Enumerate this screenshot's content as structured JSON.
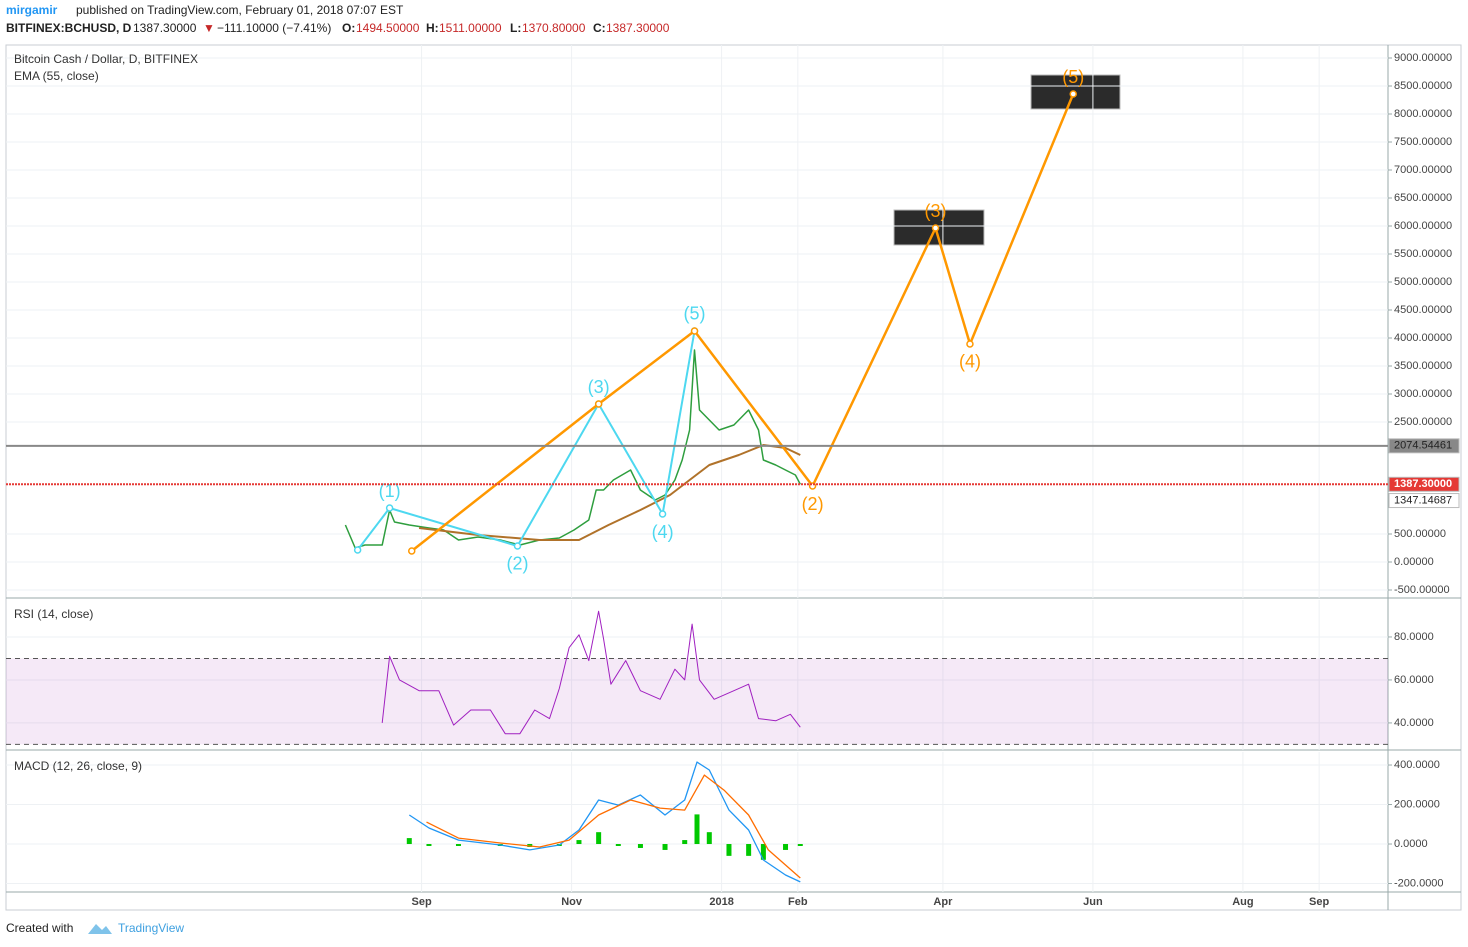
{
  "header": {
    "user": "mirgamir",
    "published": "published on TradingView.com, February 01, 2018 07:07 EST",
    "symbol": "BITFINEX:BCHUSD, D",
    "last": "1387.30000",
    "arrow": "▼",
    "change": "−111.10000 (−7.41%)",
    "o_label": "O:",
    "o": "1494.50000",
    "h_label": "H:",
    "h": "1511.00000",
    "l_label": "L:",
    "l": "1370.80000",
    "c_label": "C:",
    "c": "1387.30000"
  },
  "footer": {
    "created": "Created with",
    "brand": "TradingView"
  },
  "chart_data": [
    {
      "type": "line",
      "title": "Bitcoin Cash / Dollar, D, BITFINEX",
      "subtitle": "EMA (55, close)",
      "xlim": [
        -138,
        424
      ],
      "ylim": [
        -643,
        9232
      ],
      "grid": true,
      "yticks": [
        {
          "value": 9000,
          "label": "9000.00000"
        },
        {
          "value": 8500,
          "label": "8500.00000"
        },
        {
          "value": 8000,
          "label": "8000.00000"
        },
        {
          "value": 7500,
          "label": "7500.00000"
        },
        {
          "value": 7000,
          "label": "7000.00000"
        },
        {
          "value": 6500,
          "label": "6500.00000"
        },
        {
          "value": 6000,
          "label": "6000.00000"
        },
        {
          "value": 5500,
          "label": "5500.00000"
        },
        {
          "value": 5000,
          "label": "5000.00000"
        },
        {
          "value": 4500,
          "label": "4500.00000"
        },
        {
          "value": 4000,
          "label": "4000.00000"
        },
        {
          "value": 3500,
          "label": "3500.00000"
        },
        {
          "value": 3000,
          "label": "3000.00000"
        },
        {
          "value": 2500,
          "label": "2500.00000"
        },
        {
          "value": 500,
          "label": "500.00000"
        },
        {
          "value": 0,
          "label": "0.00000"
        },
        {
          "value": -500,
          "label": "-500.00000"
        }
      ],
      "price_lines": [
        {
          "value": 2074.54461,
          "label": "2074.54461",
          "color": "#888888",
          "line": true
        },
        {
          "value": 1387.3,
          "label": "1387.30000",
          "color": "#e53935",
          "line": true
        },
        {
          "value": 1347.14687,
          "label": "1347.14687",
          "color": "#ffffff",
          "line": false
        }
      ],
      "series": [
        {
          "color": "#2e9e3e",
          "width": 1.5,
          "x": [
            0,
            4,
            8,
            15,
            18,
            20,
            26,
            34,
            40,
            46,
            54,
            63,
            71,
            79,
            87,
            93,
            99,
            102,
            105,
            109,
            116,
            120,
            126,
            130,
            134,
            137,
            140,
            142,
            144,
            148,
            152,
            158,
            164,
            168,
            170,
            175,
            179,
            183,
            185
          ],
          "values": [
            661,
            250,
            304,
            304,
            929,
            714,
            661,
            607,
            571,
            393,
            446,
            393,
            304,
            393,
            429,
            571,
            750,
            1286,
            1286,
            1464,
            1643,
            1286,
            1107,
            1196,
            1464,
            1821,
            2357,
            3786,
            2714,
            2536,
            2357,
            2446,
            2714,
            2357,
            1821,
            1732,
            1643,
            1554,
            1387
          ]
        },
        {
          "color": "#b0722a",
          "width": 2,
          "x": [
            30,
            54,
            79,
            95,
            107,
            120,
            132,
            140,
            148,
            160,
            170,
            179,
            185
          ],
          "values": [
            607,
            482,
            393,
            393,
            661,
            929,
            1196,
            1464,
            1732,
            1911,
            2089,
            2036,
            1911
          ]
        },
        {
          "color": "#4dd8f0",
          "width": 2,
          "markers": true,
          "x": [
            5,
            18,
            70,
            103,
            129,
            142
          ],
          "values": [
            214,
            964,
            286,
            2821,
            857,
            4125
          ],
          "labels": [
            null,
            "(1)",
            "(2)",
            "(3)",
            "(4)",
            "(5)"
          ]
        },
        {
          "color": "#ff9800",
          "width": 2.5,
          "markers": true,
          "x": [
            27,
            103,
            142,
            190,
            240,
            254,
            296
          ],
          "values": [
            196,
            2821,
            4125,
            1357,
            5964,
            3893,
            8357
          ],
          "labels": [
            null,
            null,
            null,
            "(2)",
            "(3)",
            "(4)",
            "(5)"
          ]
        }
      ]
    },
    {
      "type": "line",
      "title": "RSI (14, close)",
      "xlim": [
        -138,
        424
      ],
      "ylim": [
        27.4,
        97.2
      ],
      "grid": true,
      "bands": [
        70,
        30
      ],
      "band_color": "#9c27b0",
      "yticks": [
        {
          "value": 80,
          "label": "80.0000"
        },
        {
          "value": 60,
          "label": "60.0000"
        },
        {
          "value": 40,
          "label": "40.0000"
        }
      ],
      "series": [
        {
          "color": "#a020c0",
          "width": 1,
          "x": [
            15,
            18,
            22,
            30,
            38,
            44,
            51,
            59,
            65,
            71,
            77,
            83,
            87,
            91,
            95,
            99,
            103,
            105,
            108,
            114,
            120,
            128,
            134,
            138,
            141,
            144,
            150,
            158,
            164,
            168,
            175,
            181,
            185
          ],
          "values": [
            40,
            71,
            60,
            55,
            55,
            39,
            46,
            46,
            35,
            35,
            46,
            42,
            56,
            75,
            81,
            69,
            92,
            79,
            58,
            69,
            55,
            51,
            65,
            60,
            86,
            60,
            51,
            55,
            58,
            42,
            41,
            44,
            38
          ]
        }
      ]
    },
    {
      "type": "line",
      "title": "MACD (12, 26, close, 9)",
      "xlim": [
        -138,
        424
      ],
      "ylim": [
        -243,
        466
      ],
      "grid": true,
      "yticks": [
        {
          "value": 400,
          "label": "400.0000"
        },
        {
          "value": 200,
          "label": "200.0000"
        },
        {
          "value": 0,
          "label": "0.0000"
        },
        {
          "value": -200,
          "label": "-200.0000"
        }
      ],
      "xticks": [
        {
          "value": 31,
          "label": "Sep"
        },
        {
          "value": 92,
          "label": "Nov"
        },
        {
          "value": 153,
          "label": "2018"
        },
        {
          "value": 184,
          "label": "Feb"
        },
        {
          "value": 243,
          "label": "Apr"
        },
        {
          "value": 304,
          "label": "Jun"
        },
        {
          "value": 365,
          "label": "Aug"
        },
        {
          "value": 396,
          "label": "Sep"
        }
      ],
      "series": [
        {
          "color": "#00c800",
          "style": "histogram",
          "x": [
            26,
            34,
            46,
            63,
            75,
            87,
            95,
            103,
            111,
            120,
            130,
            138,
            143,
            148,
            156,
            164,
            170,
            179,
            185
          ],
          "values": [
            30,
            -10,
            -10,
            -10,
            -15,
            -10,
            20,
            60,
            -10,
            -20,
            -30,
            20,
            150,
            60,
            -60,
            -60,
            -80,
            -30,
            -10
          ]
        },
        {
          "color": "#2196f3",
          "width": 1.3,
          "x": [
            26,
            34,
            46,
            63,
            75,
            87,
            95,
            103,
            111,
            120,
            130,
            138,
            143,
            148,
            156,
            164,
            170,
            179,
            185
          ],
          "values": [
            147,
            81,
            20,
            -5,
            -30,
            -5,
            71,
            223,
            197,
            248,
            147,
            223,
            415,
            375,
            172,
            71,
            -81,
            -157,
            -192
          ]
        },
        {
          "color": "#ff6d00",
          "width": 1.3,
          "x": [
            33,
            46,
            63,
            79,
            91,
            103,
            116,
            128,
            138,
            146,
            154,
            164,
            172,
            185
          ],
          "values": [
            111,
            30,
            5,
            -15,
            20,
            147,
            223,
            182,
            172,
            349,
            273,
            147,
            -30,
            -172
          ]
        }
      ]
    }
  ]
}
